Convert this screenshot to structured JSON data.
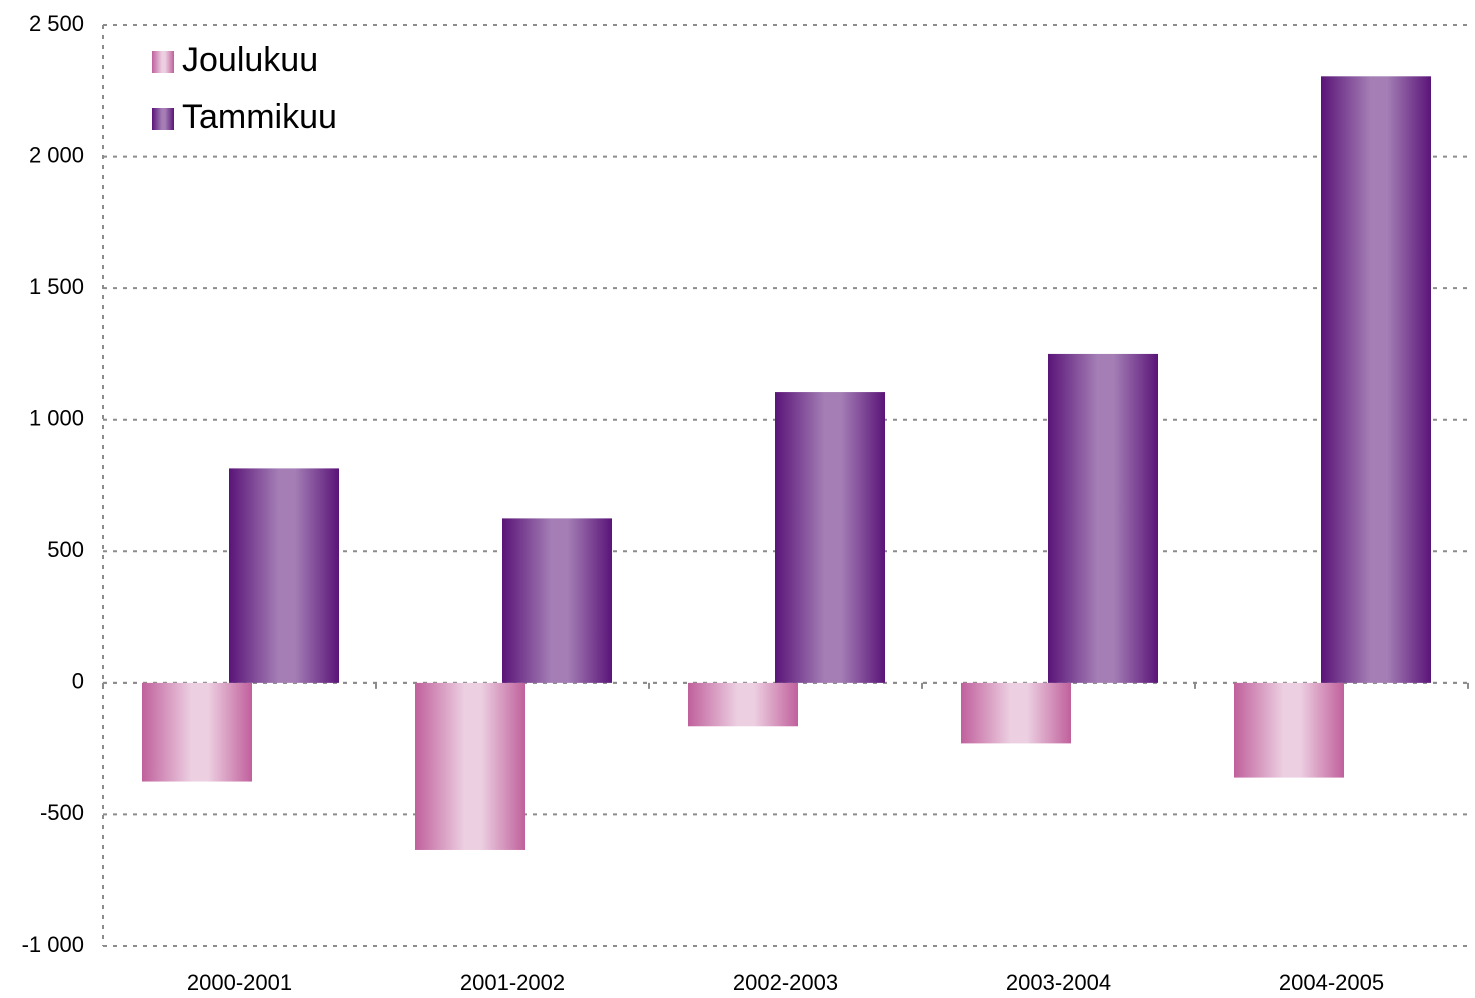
{
  "chart_data": {
    "type": "bar",
    "categories": [
      "2000-2001",
      "2001-2002",
      "2002-2003",
      "2003-2004",
      "2004-2005"
    ],
    "series": [
      {
        "name": "Joulukuu",
        "color": "#c0609c",
        "values": [
          -375,
          -635,
          -165,
          -230,
          -360
        ]
      },
      {
        "name": "Tammikuu",
        "color": "#5a1478",
        "values": [
          815,
          625,
          1105,
          1250,
          2305
        ]
      }
    ],
    "ylim": [
      -1000,
      2500
    ],
    "yticks": [
      {
        "value": -1000,
        "label": "-1 000"
      },
      -500,
      0,
      500,
      {
        "value": 1000,
        "label": "1 000"
      },
      {
        "value": 1500,
        "label": "1 500"
      },
      {
        "value": 2000,
        "label": "2 000"
      },
      {
        "value": 2500,
        "label": "2 500"
      }
    ],
    "grid": true,
    "legend": "top-left"
  }
}
